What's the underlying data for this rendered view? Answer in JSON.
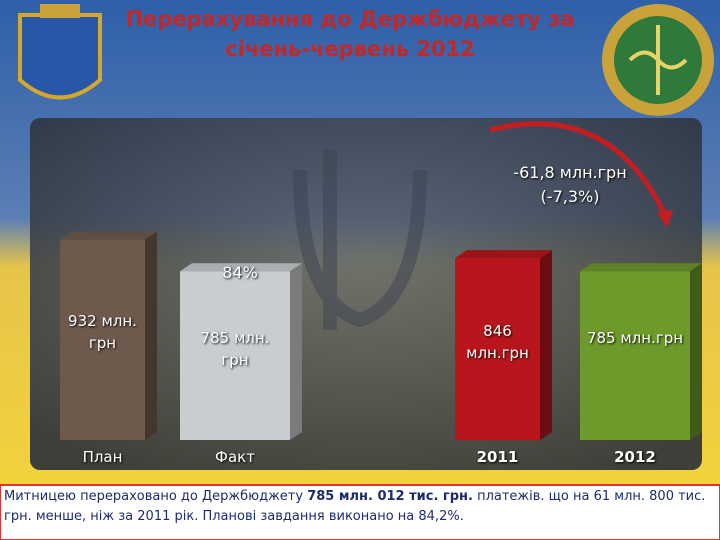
{
  "chart_data": {
    "type": "bar",
    "title": "Перерахування до Держбюджету за січень-червень 2012",
    "categories": [
      "План",
      "Факт",
      "2011",
      "2012"
    ],
    "values": [
      932,
      785,
      846,
      785
    ],
    "value_labels": [
      "932 млн. грн",
      "785 млн. грн",
      "846 млн.грн",
      "785 млн.грн"
    ],
    "colors": [
      "#6e5a4c",
      "#c9cdd0",
      "#b8161c",
      "#6d9a2a"
    ],
    "annotations": [
      "84%",
      "-61,8 млн.грн",
      "(-7,3%)"
    ]
  },
  "footer": [
    "Митницею перераховано до Держбюджету ",
    "785 млн. 012 тис. грн.",
    " платежів. що на 61 млн. 800 тис. грн. менше, ніж за 2011 рік. Планові завдання виконано на 84,2%."
  ]
}
